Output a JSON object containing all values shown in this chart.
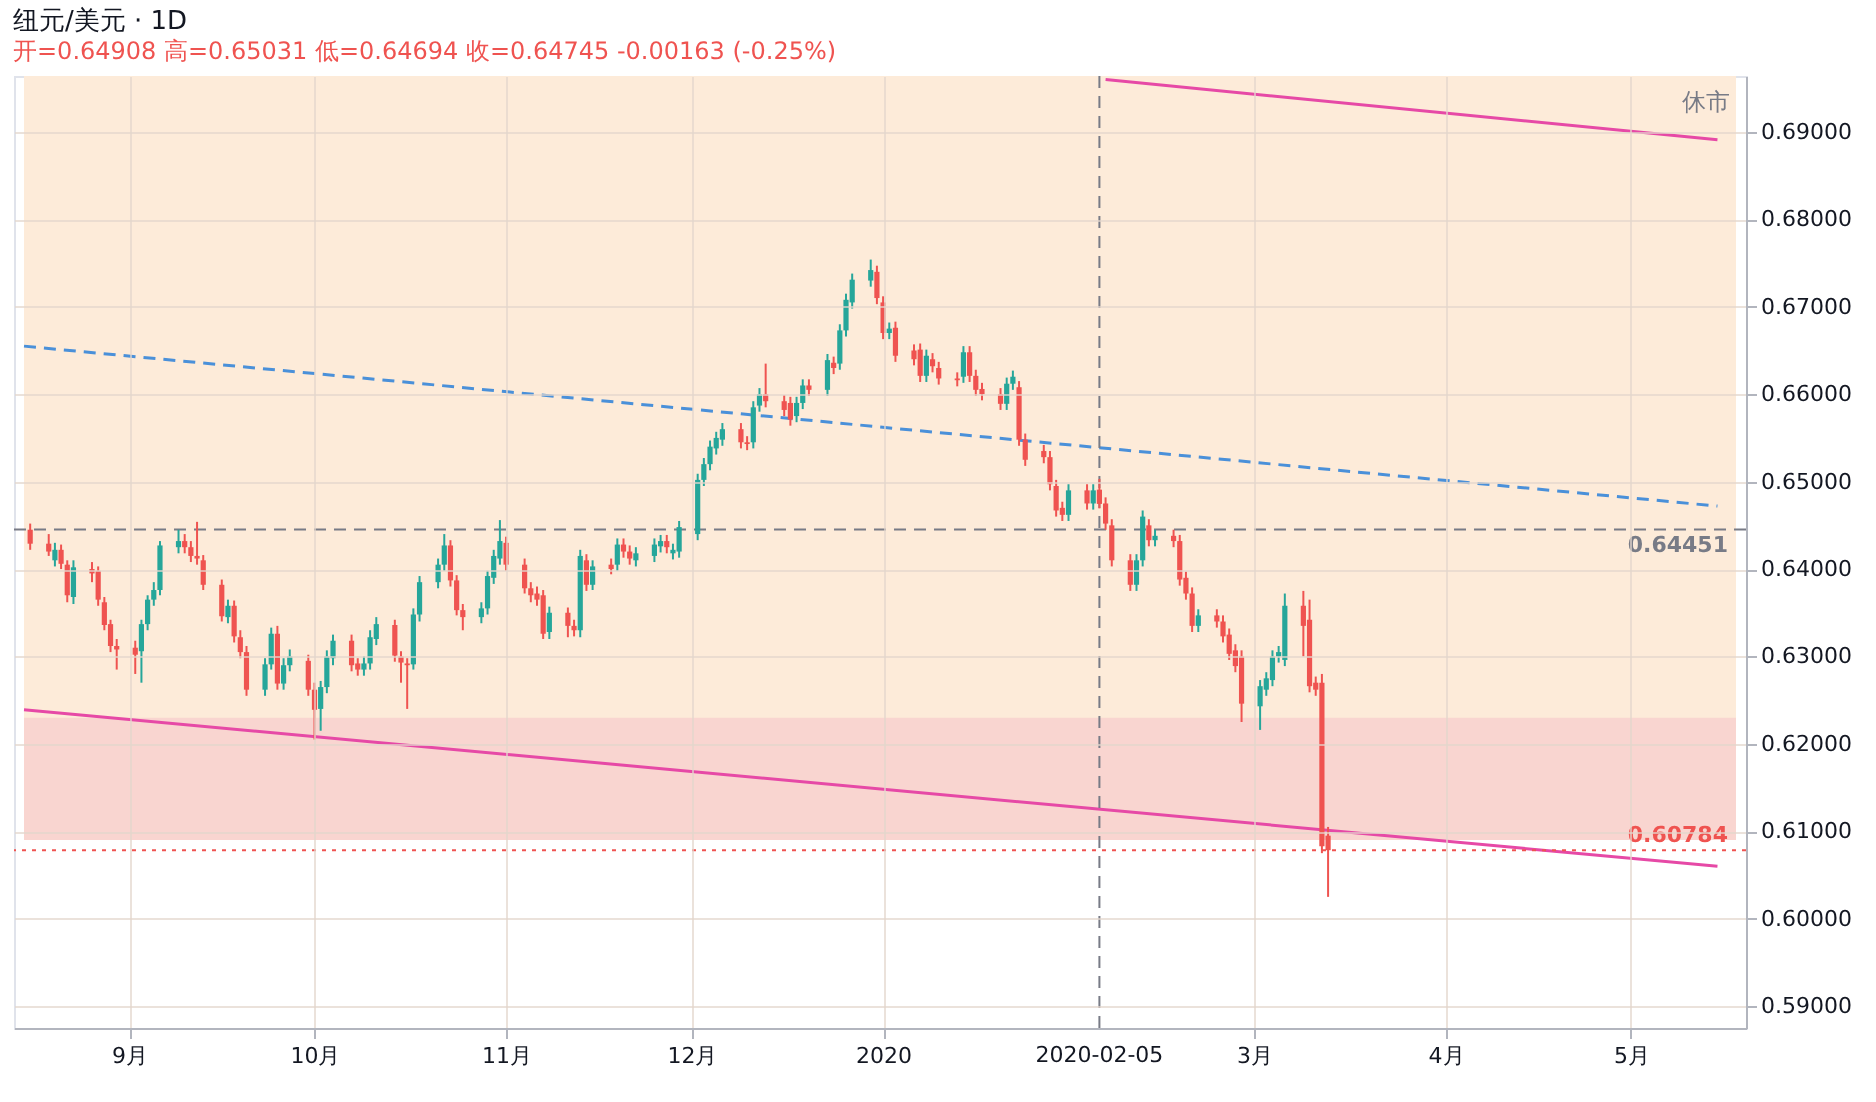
{
  "chart_data": {
    "type": "candlestick",
    "title": "纽元/美元 · 1D",
    "subtitle": "开=0.64908 高=0.65031 低=0.64694 收=0.64745 -0.00163 (-0.25%)",
    "annotations": [
      "休市"
    ],
    "x": [
      "2019-08-16",
      "2019-08-19",
      "2019-08-20",
      "2019-08-21",
      "2019-08-22",
      "2019-08-23",
      "2019-08-26",
      "2019-08-27",
      "2019-08-28",
      "2019-08-29",
      "2019-08-30",
      "2019-09-02",
      "2019-09-03",
      "2019-09-04",
      "2019-09-05",
      "2019-09-06",
      "2019-09-09",
      "2019-09-10",
      "2019-09-11",
      "2019-09-12",
      "2019-09-13",
      "2019-09-16",
      "2019-09-17",
      "2019-09-18",
      "2019-09-19",
      "2019-09-20",
      "2019-09-23",
      "2019-09-24",
      "2019-09-25",
      "2019-09-26",
      "2019-09-27",
      "2019-09-30",
      "2019-10-01",
      "2019-10-02",
      "2019-10-03",
      "2019-10-04",
      "2019-10-07",
      "2019-10-08",
      "2019-10-09",
      "2019-10-10",
      "2019-10-11",
      "2019-10-14",
      "2019-10-15",
      "2019-10-16",
      "2019-10-17",
      "2019-10-18",
      "2019-10-21",
      "2019-10-22",
      "2019-10-23",
      "2019-10-24",
      "2019-10-25",
      "2019-10-28",
      "2019-10-29",
      "2019-10-30",
      "2019-10-31",
      "2019-11-01",
      "2019-11-04",
      "2019-11-05",
      "2019-11-06",
      "2019-11-07",
      "2019-11-08",
      "2019-11-11",
      "2019-11-12",
      "2019-11-13",
      "2019-11-14",
      "2019-11-15",
      "2019-11-18",
      "2019-11-19",
      "2019-11-20",
      "2019-11-21",
      "2019-11-22",
      "2019-11-25",
      "2019-11-26",
      "2019-11-27",
      "2019-11-28",
      "2019-11-29",
      "2019-12-02",
      "2019-12-03",
      "2019-12-04",
      "2019-12-05",
      "2019-12-06",
      "2019-12-09",
      "2019-12-10",
      "2019-12-11",
      "2019-12-12",
      "2019-12-13",
      "2019-12-16",
      "2019-12-17",
      "2019-12-18",
      "2019-12-19",
      "2019-12-20",
      "2019-12-23",
      "2019-12-24",
      "2019-12-25",
      "2019-12-26",
      "2019-12-27",
      "2019-12-30",
      "2019-12-31",
      "2020-01-01",
      "2020-01-02",
      "2020-01-03",
      "2020-01-06",
      "2020-01-07",
      "2020-01-08",
      "2020-01-09",
      "2020-01-10",
      "2020-01-13",
      "2020-01-14",
      "2020-01-15",
      "2020-01-16",
      "2020-01-17",
      "2020-01-20",
      "2020-01-21",
      "2020-01-22",
      "2020-01-23",
      "2020-01-24",
      "2020-01-27",
      "2020-01-28",
      "2020-01-29",
      "2020-01-30",
      "2020-01-31",
      "2020-02-03",
      "2020-02-04",
      "2020-02-05",
      "2020-02-06",
      "2020-02-07",
      "2020-02-10",
      "2020-02-11",
      "2020-02-12",
      "2020-02-13",
      "2020-02-14",
      "2020-02-17",
      "2020-02-18",
      "2020-02-19",
      "2020-02-20",
      "2020-02-21",
      "2020-02-24",
      "2020-02-25",
      "2020-02-26",
      "2020-02-27",
      "2020-02-28",
      "2020-03-02",
      "2020-03-03",
      "2020-03-04",
      "2020-03-05",
      "2020-03-06",
      "2020-03-09",
      "2020-03-10",
      "2020-03-11",
      "2020-03-12",
      "2020-03-13"
    ],
    "ohlc": [
      [
        0.6445,
        0.6452,
        0.6422,
        0.6429
      ],
      [
        0.6429,
        0.644,
        0.6415,
        0.642
      ],
      [
        0.641,
        0.643,
        0.6403,
        0.6422
      ],
      [
        0.6422,
        0.6428,
        0.64,
        0.6406
      ],
      [
        0.6405,
        0.641,
        0.6362,
        0.637
      ],
      [
        0.6368,
        0.641,
        0.636,
        0.6402
      ],
      [
        0.64,
        0.6408,
        0.6385,
        0.6395
      ],
      [
        0.6398,
        0.6403,
        0.6358,
        0.6365
      ],
      [
        0.6362,
        0.6368,
        0.633,
        0.6336
      ],
      [
        0.6337,
        0.6342,
        0.6305,
        0.6312
      ],
      [
        0.6312,
        0.632,
        0.6285,
        0.6308
      ],
      [
        0.631,
        0.6318,
        0.628,
        0.6302
      ],
      [
        0.6306,
        0.6342,
        0.627,
        0.6337
      ],
      [
        0.6337,
        0.637,
        0.633,
        0.6365
      ],
      [
        0.6365,
        0.6385,
        0.6358,
        0.6376
      ],
      [
        0.6376,
        0.6432,
        0.637,
        0.6427
      ],
      [
        0.6425,
        0.6445,
        0.6418,
        0.6432
      ],
      [
        0.6432,
        0.644,
        0.6418,
        0.6425
      ],
      [
        0.6425,
        0.6432,
        0.6408,
        0.6415
      ],
      [
        0.6415,
        0.6454,
        0.6405,
        0.6412
      ],
      [
        0.641,
        0.6416,
        0.6376,
        0.6382
      ],
      [
        0.6382,
        0.6388,
        0.634,
        0.6346
      ],
      [
        0.6345,
        0.6365,
        0.6338,
        0.6358
      ],
      [
        0.6358,
        0.6364,
        0.6316,
        0.6323
      ],
      [
        0.6322,
        0.633,
        0.6298,
        0.6305
      ],
      [
        0.6305,
        0.6312,
        0.6255,
        0.6262
      ],
      [
        0.6262,
        0.6298,
        0.6255,
        0.6291
      ],
      [
        0.6291,
        0.6333,
        0.6285,
        0.6326
      ],
      [
        0.6326,
        0.6335,
        0.6262,
        0.6269
      ],
      [
        0.6269,
        0.6298,
        0.6262,
        0.629
      ],
      [
        0.629,
        0.6308,
        0.6283,
        0.63
      ],
      [
        0.6295,
        0.6302,
        0.6255,
        0.6262
      ],
      [
        0.6262,
        0.627,
        0.6205,
        0.6239
      ],
      [
        0.624,
        0.6272,
        0.6215,
        0.6265
      ],
      [
        0.6265,
        0.6307,
        0.6258,
        0.63
      ],
      [
        0.6298,
        0.6325,
        0.629,
        0.6318
      ],
      [
        0.6318,
        0.6325,
        0.6283,
        0.629
      ],
      [
        0.6292,
        0.6298,
        0.6278,
        0.6285
      ],
      [
        0.6285,
        0.63,
        0.6278,
        0.6292
      ],
      [
        0.6292,
        0.633,
        0.6285,
        0.6322
      ],
      [
        0.632,
        0.6345,
        0.6313,
        0.6337
      ],
      [
        0.6336,
        0.6342,
        0.6294,
        0.6301
      ],
      [
        0.63,
        0.6306,
        0.627,
        0.6293
      ],
      [
        0.6292,
        0.6298,
        0.624,
        0.629
      ],
      [
        0.6291,
        0.6355,
        0.6285,
        0.6348
      ],
      [
        0.6348,
        0.6392,
        0.634,
        0.6385
      ],
      [
        0.6385,
        0.6412,
        0.6378,
        0.6405
      ],
      [
        0.6405,
        0.644,
        0.6398,
        0.6427
      ],
      [
        0.6427,
        0.6433,
        0.638,
        0.6387
      ],
      [
        0.6387,
        0.6393,
        0.6347,
        0.6353
      ],
      [
        0.6353,
        0.636,
        0.633,
        0.6345
      ],
      [
        0.6345,
        0.6362,
        0.6338,
        0.6355
      ],
      [
        0.6355,
        0.6398,
        0.6348,
        0.6392
      ],
      [
        0.639,
        0.6422,
        0.6383,
        0.6415
      ],
      [
        0.6412,
        0.6456,
        0.6405,
        0.6432
      ],
      [
        0.643,
        0.6437,
        0.6398,
        0.6405
      ],
      [
        0.6405,
        0.6412,
        0.6372,
        0.6378
      ],
      [
        0.6378,
        0.6385,
        0.6362,
        0.637
      ],
      [
        0.6372,
        0.638,
        0.6358,
        0.6365
      ],
      [
        0.637,
        0.6376,
        0.632,
        0.6326
      ],
      [
        0.6328,
        0.6357,
        0.632,
        0.635
      ],
      [
        0.635,
        0.6356,
        0.6322,
        0.6335
      ],
      [
        0.6335,
        0.6342,
        0.6323,
        0.633
      ],
      [
        0.633,
        0.6422,
        0.6322,
        0.6415
      ],
      [
        0.641,
        0.6417,
        0.6375,
        0.6382
      ],
      [
        0.6382,
        0.641,
        0.6376,
        0.6403
      ],
      [
        0.6405,
        0.6412,
        0.6394,
        0.64
      ],
      [
        0.6405,
        0.6435,
        0.6398,
        0.6428
      ],
      [
        0.6428,
        0.6435,
        0.6413,
        0.642
      ],
      [
        0.642,
        0.6427,
        0.6405,
        0.6412
      ],
      [
        0.641,
        0.6425,
        0.6403,
        0.6418
      ],
      [
        0.6415,
        0.6435,
        0.6408,
        0.6428
      ],
      [
        0.6426,
        0.6439,
        0.6419,
        0.6432
      ],
      [
        0.6432,
        0.6439,
        0.6418,
        0.6425
      ],
      [
        0.6418,
        0.6429,
        0.6411,
        0.6422
      ],
      [
        0.642,
        0.6455,
        0.6413,
        0.6448
      ],
      [
        0.644,
        0.6509,
        0.6433,
        0.6502
      ],
      [
        0.6502,
        0.6527,
        0.6495,
        0.652
      ],
      [
        0.652,
        0.6547,
        0.6513,
        0.654
      ],
      [
        0.6538,
        0.6557,
        0.6531,
        0.655
      ],
      [
        0.6548,
        0.6567,
        0.6541,
        0.656
      ],
      [
        0.656,
        0.6567,
        0.6538,
        0.6545
      ],
      [
        0.6545,
        0.6552,
        0.6536,
        0.6543
      ],
      [
        0.6545,
        0.6592,
        0.6538,
        0.6585
      ],
      [
        0.6587,
        0.6607,
        0.658,
        0.66
      ],
      [
        0.66,
        0.6635,
        0.6585,
        0.6592
      ],
      [
        0.6592,
        0.6599,
        0.6575,
        0.6582
      ],
      [
        0.659,
        0.6597,
        0.6564,
        0.6571
      ],
      [
        0.6575,
        0.6597,
        0.6568,
        0.659
      ],
      [
        0.659,
        0.6617,
        0.6583,
        0.661
      ],
      [
        0.661,
        0.6617,
        0.6598,
        0.6605
      ],
      [
        0.6605,
        0.6646,
        0.6598,
        0.6639
      ],
      [
        0.6636,
        0.6643,
        0.6623,
        0.663
      ],
      [
        0.6635,
        0.668,
        0.6628,
        0.6673
      ],
      [
        0.6673,
        0.6715,
        0.6666,
        0.6708
      ],
      [
        0.6705,
        0.6738,
        0.6698,
        0.6731
      ],
      [
        0.673,
        0.6754,
        0.6723,
        0.6742
      ],
      [
        0.674,
        0.6747,
        0.6703,
        0.671
      ],
      [
        0.6705,
        0.6712,
        0.6663,
        0.667
      ],
      [
        0.667,
        0.6682,
        0.6663,
        0.6675
      ],
      [
        0.6676,
        0.6683,
        0.6637,
        0.6644
      ],
      [
        0.665,
        0.6657,
        0.6633,
        0.664
      ],
      [
        0.6651,
        0.6658,
        0.6614,
        0.6621
      ],
      [
        0.6621,
        0.6651,
        0.6614,
        0.6644
      ],
      [
        0.664,
        0.6647,
        0.6625,
        0.6632
      ],
      [
        0.663,
        0.6637,
        0.6611,
        0.6618
      ],
      [
        0.6618,
        0.6625,
        0.6609,
        0.6616
      ],
      [
        0.662,
        0.6655,
        0.6613,
        0.6648
      ],
      [
        0.6648,
        0.6655,
        0.6614,
        0.6621
      ],
      [
        0.6621,
        0.6628,
        0.6598,
        0.6605
      ],
      [
        0.6606,
        0.6613,
        0.6593,
        0.66
      ],
      [
        0.66,
        0.6607,
        0.6582,
        0.6589
      ],
      [
        0.6589,
        0.6619,
        0.6582,
        0.6612
      ],
      [
        0.6612,
        0.6627,
        0.6605,
        0.662
      ],
      [
        0.6608,
        0.6615,
        0.6541,
        0.6548
      ],
      [
        0.6548,
        0.6555,
        0.6518,
        0.6525
      ],
      [
        0.6535,
        0.6542,
        0.6521,
        0.6528
      ],
      [
        0.6528,
        0.6535,
        0.649,
        0.6497
      ],
      [
        0.6495,
        0.6502,
        0.646,
        0.6467
      ],
      [
        0.647,
        0.6477,
        0.6455,
        0.6462
      ],
      [
        0.6462,
        0.6497,
        0.6455,
        0.649
      ],
      [
        0.649,
        0.6497,
        0.6468,
        0.6475
      ],
      [
        0.6475,
        0.6497,
        0.6468,
        0.649
      ],
      [
        0.64908,
        0.65031,
        0.64694,
        0.64745
      ],
      [
        0.6475,
        0.6482,
        0.6445,
        0.6452
      ],
      [
        0.645,
        0.6457,
        0.6403,
        0.641
      ],
      [
        0.641,
        0.6417,
        0.6375,
        0.6382
      ],
      [
        0.6382,
        0.6417,
        0.6375,
        0.641
      ],
      [
        0.641,
        0.6467,
        0.6403,
        0.646
      ],
      [
        0.645,
        0.6457,
        0.6426,
        0.6433
      ],
      [
        0.6433,
        0.6445,
        0.6426,
        0.6438
      ],
      [
        0.6438,
        0.6445,
        0.6425,
        0.6432
      ],
      [
        0.6432,
        0.6439,
        0.6381,
        0.6388
      ],
      [
        0.639,
        0.6397,
        0.6365,
        0.6372
      ],
      [
        0.6372,
        0.6379,
        0.6328,
        0.6335
      ],
      [
        0.6335,
        0.6354,
        0.6328,
        0.6347
      ],
      [
        0.6347,
        0.6354,
        0.6333,
        0.634
      ],
      [
        0.634,
        0.6347,
        0.6316,
        0.6323
      ],
      [
        0.6325,
        0.6332,
        0.6296,
        0.6303
      ],
      [
        0.6307,
        0.6314,
        0.6282,
        0.6289
      ],
      [
        0.63,
        0.6307,
        0.6225,
        0.6246
      ],
      [
        0.6243,
        0.6273,
        0.6216,
        0.6266
      ],
      [
        0.6262,
        0.6282,
        0.6255,
        0.6275
      ],
      [
        0.6273,
        0.6307,
        0.6266,
        0.63
      ],
      [
        0.63,
        0.6312,
        0.6293,
        0.6305
      ],
      [
        0.6296,
        0.6372,
        0.6289,
        0.6358
      ],
      [
        0.6358,
        0.6375,
        0.63,
        0.6335
      ],
      [
        0.6342,
        0.6365,
        0.6259,
        0.6266
      ],
      [
        0.627,
        0.6277,
        0.6255,
        0.6262
      ],
      [
        0.627,
        0.628,
        0.6075,
        0.6083
      ],
      [
        0.6095,
        0.6105,
        0.6025,
        0.60784
      ]
    ],
    "colors": [
      "#ef5350",
      "#ef5350",
      "#26a69a",
      "#ef5350",
      "#ef5350",
      "#26a69a",
      "#ef5350",
      "#ef5350",
      "#ef5350",
      "#ef5350",
      "#ef5350",
      "#ef5350",
      "#26a69a",
      "#26a69a",
      "#26a69a",
      "#26a69a",
      "#26a69a",
      "#ef5350",
      "#ef5350",
      "#ef5350",
      "#ef5350",
      "#ef5350",
      "#26a69a",
      "#ef5350",
      "#ef5350",
      "#ef5350",
      "#26a69a",
      "#26a69a",
      "#ef5350",
      "#26a69a",
      "#26a69a",
      "#ef5350",
      "#ef5350",
      "#26a69a",
      "#26a69a",
      "#26a69a",
      "#ef5350",
      "#ef5350",
      "#26a69a",
      "#26a69a",
      "#26a69a",
      "#ef5350",
      "#ef5350",
      "#ef5350",
      "#26a69a",
      "#26a69a",
      "#26a69a",
      "#26a69a",
      "#ef5350",
      "#ef5350",
      "#ef5350",
      "#26a69a",
      "#26a69a",
      "#26a69a",
      "#26a69a",
      "#ef5350",
      "#ef5350",
      "#ef5350",
      "#ef5350",
      "#ef5350",
      "#26a69a",
      "#ef5350",
      "#ef5350",
      "#26a69a",
      "#ef5350",
      "#26a69a",
      "#ef5350",
      "#26a69a",
      "#ef5350",
      "#ef5350",
      "#26a69a",
      "#26a69a",
      "#26a69a",
      "#ef5350",
      "#26a69a",
      "#26a69a",
      "#26a69a",
      "#26a69a",
      "#26a69a",
      "#26a69a",
      "#26a69a",
      "#ef5350",
      "#ef5350",
      "#26a69a",
      "#26a69a",
      "#ef5350",
      "#ef5350",
      "#ef5350",
      "#26a69a",
      "#26a69a",
      "#ef5350",
      "#26a69a",
      "#ef5350",
      "#26a69a",
      "#26a69a",
      "#26a69a",
      "#26a69a",
      "#ef5350",
      "#ef5350",
      "#26a69a",
      "#ef5350",
      "#ef5350",
      "#ef5350",
      "#26a69a",
      "#ef5350",
      "#ef5350",
      "#ef5350",
      "#26a69a",
      "#ef5350",
      "#ef5350",
      "#ef5350",
      "#ef5350",
      "#26a69a",
      "#26a69a",
      "#ef5350",
      "#ef5350",
      "#ef5350",
      "#ef5350",
      "#ef5350",
      "#ef5350",
      "#26a69a",
      "#ef5350",
      "#26a69a",
      "#ef5350",
      "#ef5350",
      "#ef5350",
      "#ef5350",
      "#26a69a",
      "#26a69a",
      "#ef5350",
      "#26a69a",
      "#ef5350",
      "#ef5350",
      "#ef5350",
      "#ef5350",
      "#26a69a",
      "#ef5350",
      "#ef5350",
      "#ef5350",
      "#ef5350",
      "#ef5350",
      "#26a69a",
      "#26a69a",
      "#26a69a",
      "#26a69a",
      "#26a69a",
      "#ef5350",
      "#ef5350",
      "#ef5350",
      "#ef5350",
      "#ef5350"
    ],
    "series": [
      {
        "type": "line",
        "color": "#e649a6",
        "line_style": "solid",
        "x": [
          "2020-02-06",
          "2020-05-15"
        ],
        "values": [
          0.696,
          0.6891
        ]
      },
      {
        "type": "line",
        "color": "#4a90d9",
        "line_style": "dashed",
        "x": [
          "2019-08-15",
          "2020-05-15"
        ],
        "values": [
          0.6655,
          0.6472
        ]
      },
      {
        "type": "line",
        "color": "#e649a6",
        "line_style": "solid",
        "x": [
          "2019-08-15",
          "2020-05-15"
        ],
        "values": [
          0.6239,
          0.606
        ]
      }
    ],
    "xlim": [
      "2019-08-15",
      "2020-05-18"
    ],
    "xticks": [
      {
        "value": "2019-09-01",
        "label": "9月"
      },
      {
        "value": "2019-10-01",
        "label": "10月"
      },
      {
        "value": "2019-11-01",
        "label": "11月"
      },
      {
        "value": "2019-12-01",
        "label": "12月"
      },
      {
        "value": "2020-01-01",
        "label": "2020"
      },
      {
        "value": "2020-03-01",
        "label": "3月"
      },
      {
        "value": "2020-04-01",
        "label": "4月"
      },
      {
        "value": "2020-05-01",
        "label": "5月"
      }
    ],
    "ylim": [
      0.5875,
      0.6964
    ],
    "yticks": [
      {
        "value": 0.59,
        "label": "0.59000"
      },
      {
        "value": 0.6,
        "label": "0.60000"
      },
      {
        "value": 0.61,
        "label": "0.61000"
      },
      {
        "value": 0.62,
        "label": "0.62000"
      },
      {
        "value": 0.63,
        "label": "0.63000"
      },
      {
        "value": 0.64,
        "label": "0.64000"
      },
      {
        "value": 0.65,
        "label": "0.65000"
      },
      {
        "value": 0.66,
        "label": "0.66000"
      },
      {
        "value": 0.67,
        "label": "0.67000"
      },
      {
        "value": 0.68,
        "label": "0.68000"
      },
      {
        "value": 0.69,
        "label": "0.69000"
      }
    ],
    "ref_lines": [
      {
        "axis": "y",
        "value": 0.64451,
        "label": "0.64451",
        "color": "#787b86",
        "line_style": "dashed"
      },
      {
        "axis": "y",
        "value": 0.60784,
        "label": "0.60784",
        "color": "#ef5350",
        "line_style": "dotted"
      },
      {
        "axis": "x",
        "value": "2020-02-05",
        "label": "2020-02-05",
        "color": "#787b86",
        "line_style": "dashed"
      }
    ],
    "bands": [
      {
        "axis": "y",
        "from": 0.609,
        "to": 0.6964,
        "color": "#fdebd9"
      },
      {
        "axis": "y",
        "from": 0.609,
        "to": 0.623,
        "color": "#f9d5d0"
      }
    ],
    "grid": true
  }
}
